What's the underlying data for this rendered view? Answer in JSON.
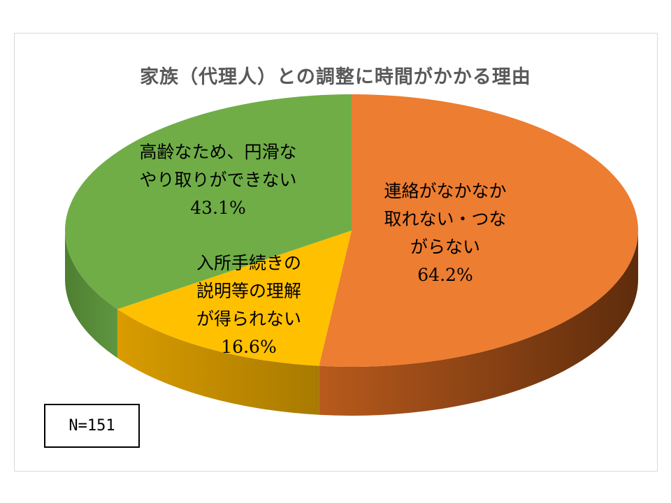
{
  "chart_data": {
    "type": "pie",
    "title": "家族（代理人）との調整に時間がかかる理由",
    "note": "N=151",
    "slices": [
      {
        "label_lines": [
          "連絡がなかなか",
          "取れない・つな",
          "がらない"
        ],
        "value": 64.2,
        "value_label": "64.2%",
        "color": "#ED7D31"
      },
      {
        "label_lines": [
          "入所手続きの",
          "説明等の理解",
          "が得られない"
        ],
        "value": 16.6,
        "value_label": "16.6%",
        "color": "#FFC000"
      },
      {
        "label_lines": [
          "高齢なため、円滑な",
          "やり取りができない"
        ],
        "value": 43.1,
        "value_label": "43.1%",
        "color": "#70AD47"
      }
    ]
  }
}
